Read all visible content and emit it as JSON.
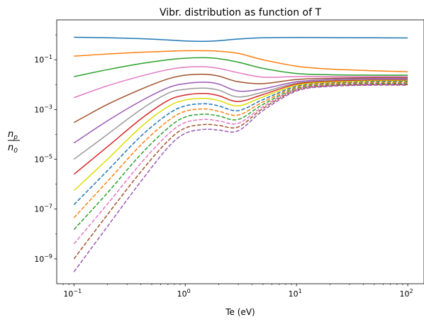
{
  "chart_data": {
    "type": "line",
    "title": "Vibr. distribution as function of T",
    "xlabel": "Te (eV)",
    "ylabel": "n_p / n_0",
    "ylabel_num": "n",
    "ylabel_num_sub": "p",
    "ylabel_den": "n",
    "ylabel_den_sub": "0",
    "x_scale": "log",
    "y_scale": "log",
    "xlim": [
      0.07,
      140
    ],
    "ylim": [
      1e-10,
      4
    ],
    "x_ticks": [
      {
        "value": 0.1,
        "base": "10",
        "exp": "−1"
      },
      {
        "value": 1,
        "base": "10",
        "exp": "0"
      },
      {
        "value": 10,
        "base": "10",
        "exp": "1"
      },
      {
        "value": 100,
        "base": "10",
        "exp": "2"
      }
    ],
    "y_ticks": [
      {
        "value": 1e-09,
        "base": "10",
        "exp": "−9"
      },
      {
        "value": 1e-07,
        "base": "10",
        "exp": "−7"
      },
      {
        "value": 1e-05,
        "base": "10",
        "exp": "−5"
      },
      {
        "value": 0.001,
        "base": "10",
        "exp": "−3"
      },
      {
        "value": 0.1,
        "base": "10",
        "exp": "−1"
      }
    ],
    "x": [
      0.1,
      0.2,
      0.4,
      0.7,
      1.0,
      1.5,
      2.0,
      3.0,
      5.0,
      10,
      20,
      50,
      100
    ],
    "grid": false,
    "legend": "none",
    "series": [
      {
        "color": "#1f77b4",
        "dash": "solid",
        "values": [
          0.8,
          0.76,
          0.7,
          0.62,
          0.57,
          0.55,
          0.58,
          0.68,
          0.76,
          0.78,
          0.77,
          0.76,
          0.75
        ]
      },
      {
        "color": "#ff7f0e",
        "dash": "solid",
        "values": [
          0.14,
          0.17,
          0.2,
          0.22,
          0.23,
          0.23,
          0.22,
          0.18,
          0.1,
          0.055,
          0.042,
          0.036,
          0.033
        ]
      },
      {
        "color": "#2ca02c",
        "dash": "solid",
        "values": [
          0.021,
          0.04,
          0.07,
          0.1,
          0.115,
          0.12,
          0.11,
          0.08,
          0.045,
          0.028,
          0.025,
          0.024,
          0.024
        ]
      },
      {
        "color": "#e377c2",
        "dash": "solid",
        "values": [
          0.003,
          0.009,
          0.022,
          0.04,
          0.05,
          0.052,
          0.045,
          0.03,
          0.02,
          0.021,
          0.021,
          0.021,
          0.021
        ]
      },
      {
        "color": "#a0522d",
        "dash": "solid",
        "values": [
          0.0003,
          0.0016,
          0.0065,
          0.017,
          0.024,
          0.026,
          0.022,
          0.013,
          0.011,
          0.016,
          0.018,
          0.019,
          0.019
        ]
      },
      {
        "color": "#9b59b6",
        "dash": "solid",
        "values": [
          4.5e-05,
          0.00035,
          0.0022,
          0.0075,
          0.011,
          0.0125,
          0.0105,
          0.0055,
          0.0068,
          0.013,
          0.016,
          0.0175,
          0.0175
        ]
      },
      {
        "color": "#999999",
        "dash": "solid",
        "values": [
          1e-05,
          0.0001,
          0.001,
          0.0045,
          0.0065,
          0.0072,
          0.006,
          0.0032,
          0.005,
          0.0115,
          0.0145,
          0.016,
          0.016
        ]
      },
      {
        "color": "#d62728",
        "dash": "solid",
        "values": [
          2.5e-06,
          3.2e-05,
          0.00042,
          0.0023,
          0.0038,
          0.0044,
          0.0036,
          0.0021,
          0.004,
          0.0105,
          0.0135,
          0.015,
          0.015
        ]
      },
      {
        "color": "#dddd00",
        "dash": "solid",
        "values": [
          5.5e-07,
          1e-05,
          0.0002,
          0.0013,
          0.0024,
          0.0028,
          0.0023,
          0.0014,
          0.0032,
          0.0095,
          0.0125,
          0.014,
          0.014
        ]
      },
      {
        "color": "#1f77b4",
        "dash": "dashed",
        "values": [
          1.5e-07,
          3.5e-06,
          8.5e-05,
          0.00065,
          0.0014,
          0.0017,
          0.0014,
          0.0009,
          0.0025,
          0.0085,
          0.0115,
          0.013,
          0.013
        ]
      },
      {
        "color": "#ff7f0e",
        "dash": "dashed",
        "values": [
          4.5e-08,
          1.3e-06,
          3.8e-05,
          0.00035,
          0.00085,
          0.00105,
          0.00085,
          0.0006,
          0.002,
          0.0078,
          0.011,
          0.012,
          0.012
        ]
      },
      {
        "color": "#2ca02c",
        "dash": "dashed",
        "values": [
          1.5e-08,
          4.5e-07,
          1.6e-05,
          0.00018,
          0.0005,
          0.00065,
          0.00055,
          0.0004,
          0.0016,
          0.007,
          0.01,
          0.011,
          0.011
        ]
      },
      {
        "color": "#e377c2",
        "dash": "dashed",
        "values": [
          4e-09,
          1.6e-07,
          7e-06,
          0.0001,
          0.0003,
          0.0004,
          0.00035,
          0.00028,
          0.0013,
          0.0065,
          0.0095,
          0.0105,
          0.0105
        ]
      },
      {
        "color": "#a0522d",
        "dash": "dashed",
        "values": [
          1e-09,
          6e-08,
          3.2e-06,
          5.5e-05,
          0.00018,
          0.00025,
          0.00023,
          0.0002,
          0.0011,
          0.006,
          0.009,
          0.01,
          0.01
        ]
      },
      {
        "color": "#9b59b6",
        "dash": "dashed",
        "values": [
          3e-10,
          2e-08,
          1.3e-06,
          3e-05,
          0.00011,
          0.00016,
          0.00015,
          0.00014,
          0.0009,
          0.0055,
          0.0085,
          0.0095,
          0.0095
        ]
      }
    ]
  }
}
